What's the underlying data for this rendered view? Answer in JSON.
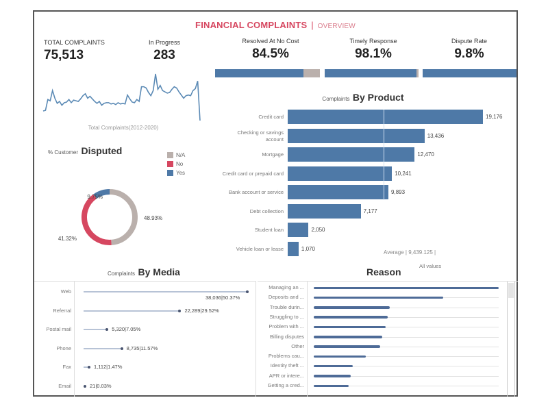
{
  "header": {
    "title": "FINANCIAL COMPLAINTS",
    "separator": "|",
    "subtitle": "OVERVIEW"
  },
  "kpis": {
    "total": {
      "label": "TOTAL COMPLAINTS",
      "value": "75,513"
    },
    "in_progress": {
      "label": "In Progress",
      "value": "283"
    },
    "resolved": {
      "label": "Resolved At No Cost",
      "value": "84.5%",
      "fraction": 0.845
    },
    "timely": {
      "label": "Timely Response",
      "value": "98.1%",
      "fraction": 0.981
    },
    "dispute": {
      "label": "Dispute Rate",
      "value": "9.8%",
      "fraction": 0.098
    }
  },
  "colors": {
    "accent_red": "#d64760",
    "bar_blue": "#4e79a7",
    "na_grey": "#bab0ac",
    "no_red": "#e15759",
    "reason_track": "#e8e8e8"
  },
  "sparkline": {
    "caption": "Total Complaints(2012-2020)",
    "values": [
      20,
      21,
      38,
      36,
      52,
      40,
      32,
      35,
      29,
      33,
      34,
      38,
      33,
      37,
      36,
      35,
      39,
      44,
      47,
      40,
      43,
      39,
      35,
      32,
      35,
      29,
      32,
      33,
      33,
      31,
      32,
      30,
      33,
      31,
      32,
      31,
      45,
      39,
      34,
      33,
      38,
      35,
      58,
      58,
      56,
      49,
      44,
      52,
      78,
      54,
      60,
      52,
      50,
      48,
      49,
      54,
      58,
      56,
      50,
      45,
      40,
      44,
      45,
      44,
      52,
      55,
      67,
      5
    ]
  },
  "disputed": {
    "title_small": "% Customer",
    "title_big": "Disputed",
    "legend": [
      {
        "label": "N/A",
        "color": "#bab0ac"
      },
      {
        "label": "No",
        "color": "#e15759"
      },
      {
        "label": "Yes",
        "color": "#4e79a7"
      }
    ],
    "slices": [
      {
        "name": "N/A",
        "percent": 48.93,
        "label": "48.93%",
        "color": "#bab0ac"
      },
      {
        "name": "No",
        "percent": 41.32,
        "label": "41.32%",
        "color": "#d64760"
      },
      {
        "name": "Yes",
        "percent": 9.75,
        "label": "9.75%",
        "color": "#4e79a7"
      }
    ]
  },
  "chart_data": [
    {
      "type": "bar",
      "title": "Complaints By Product",
      "title_small": "Complaints",
      "title_big": "By Product",
      "categories": [
        "Credit card",
        "Checking or savings account",
        "Mortgage",
        "Credit card or prepaid card",
        "Bank account or service",
        "Debt collection",
        "Student loan",
        "Vehicle loan or lease"
      ],
      "category_lines": [
        [
          "Credit card"
        ],
        [
          "Checking or savings",
          "account"
        ],
        [
          "Mortgage"
        ],
        [
          "Credit card or prepaid card"
        ],
        [
          "Bank account or service"
        ],
        [
          "Debt collection"
        ],
        [
          "Student loan"
        ],
        [
          "Vehicle loan or lease"
        ]
      ],
      "values": [
        19176,
        13436,
        12470,
        10241,
        9893,
        7177,
        2050,
        1070
      ],
      "value_labels": [
        "19,176",
        "13,436",
        "12,470",
        "10,241",
        "9,893",
        "7,177",
        "2,050",
        "1,070"
      ],
      "reference_line": {
        "label": "Average",
        "value": 9439.125,
        "value_label": "9,439.125"
      },
      "footer_note": "All values",
      "xlim": [
        0,
        19176
      ]
    },
    {
      "type": "bar",
      "title": "Complaints By Media",
      "title_small": "Complaints",
      "title_big": "By Media",
      "categories": [
        "Web",
        "Referral",
        "Postal mail",
        "Phone",
        "Fax",
        "Email"
      ],
      "values": [
        38036,
        22289,
        5320,
        8735,
        1112,
        21
      ],
      "value_labels": [
        "38,036|50.37%",
        "22,289|29.52%",
        "5,320|7.05%",
        "8,735|11.57%",
        "1,112|1.47%",
        "21|0.03%"
      ],
      "percents": [
        50.37,
        29.52,
        7.05,
        11.57,
        1.47,
        0.03
      ],
      "xlim": [
        0,
        38036
      ]
    },
    {
      "type": "bar",
      "title": "Reason",
      "categories": [
        "Managing an ...",
        "Deposits and ...",
        "Trouble durin...",
        "Struggling to ...",
        "Problem with ...",
        "Billing disputes",
        "Other",
        "Problems cau...",
        "Identity theft ...",
        "APR or intere...",
        "Getting a cred..."
      ],
      "relative_values": [
        1.0,
        0.7,
        0.41,
        0.4,
        0.39,
        0.37,
        0.36,
        0.28,
        0.21,
        0.2,
        0.19
      ],
      "xlim": [
        0,
        1
      ]
    }
  ]
}
